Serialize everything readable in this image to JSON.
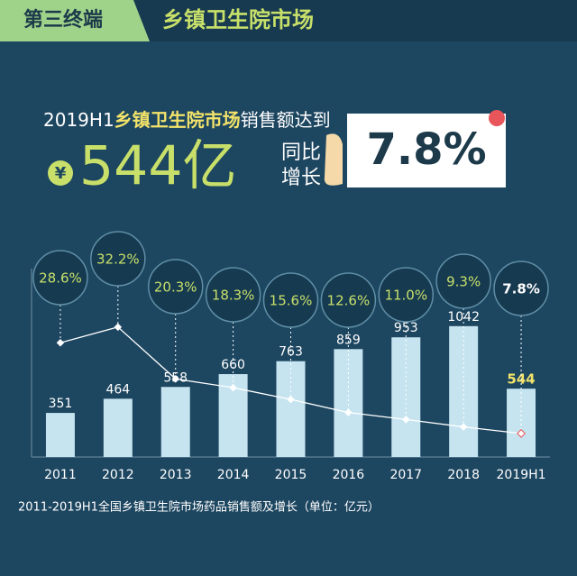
{
  "header": {
    "tag": "第三终端",
    "title": "乡镇卫生院市场"
  },
  "headline": {
    "prefix": "2019H1",
    "highlight": "乡镇卫生院市场",
    "suffix": "销售额达到",
    "currency": "¥",
    "amount": "544亿",
    "growth_label_1": "同比",
    "growth_label_2": "增长",
    "growth": "7.8%"
  },
  "chart_data": {
    "type": "bar",
    "categories": [
      "2011",
      "2012",
      "2013",
      "2014",
      "2015",
      "2016",
      "2017",
      "2018",
      "2019H1"
    ],
    "ylim": [
      0,
      1500
    ],
    "y2lim": [
      2.4,
      45.6
    ],
    "series": [
      {
        "type": "bar",
        "color": "#c6e4f0",
        "values": [
          351,
          464,
          558,
          660,
          763,
          859,
          953,
          1042,
          544
        ]
      },
      {
        "type": "line",
        "axis": "y2",
        "color": "#ffffff",
        "values": [
          28.6,
          32.2,
          20.3,
          18.3,
          15.6,
          12.6,
          11.0,
          9.3,
          7.8
        ],
        "value_labels": [
          "28.6%",
          "32.2%",
          "20.3%",
          "18.3%",
          "15.6%",
          "12.6%",
          "11.0%",
          "9.3%",
          "7.8%"
        ]
      }
    ]
  },
  "caption": "2011-2019H1全国乡镇卫生院市场药品销售额及增长（单位：亿元）"
}
